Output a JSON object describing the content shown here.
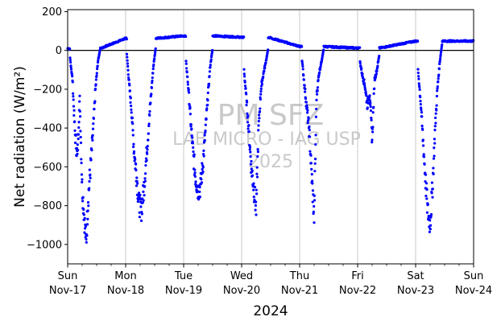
{
  "chart_data": {
    "type": "scatter",
    "ylabel": "Net radiation (W/m²)",
    "xlabel": "2024",
    "ylim": [
      -1100,
      210
    ],
    "xlim": [
      "2024-11-17 00:00",
      "2024-11-24 00:00"
    ],
    "yticks": [
      200,
      0,
      -200,
      -400,
      -600,
      -800,
      -1000
    ],
    "xticks": [
      {
        "day": "Sun",
        "date": "Nov-17"
      },
      {
        "day": "Mon",
        "date": "Nov-18"
      },
      {
        "day": "Tue",
        "date": "Nov-19"
      },
      {
        "day": "Wed",
        "date": "Nov-20"
      },
      {
        "day": "Thu",
        "date": "Nov-21"
      },
      {
        "day": "Fri",
        "date": "Nov-22"
      },
      {
        "day": "Sat",
        "date": "Nov-23"
      },
      {
        "day": "Sun",
        "date": "Nov-24"
      }
    ],
    "minor_ticks_per_day": 4,
    "grid": "vertical at day ticks",
    "zero_line": true,
    "marker_color": "#0000ff",
    "watermark": [
      "PM SFZ",
      "LAB MICRO - IAG USP",
      "2025"
    ],
    "series": [
      {
        "name": "",
        "daily_nighttime_values": [
          {
            "date": "2024-11-17",
            "night_level": 10,
            "daytime": [
              {
                "time": "01:00",
                "value": -40
              },
              {
                "time": "02:00",
                "value": -150
              },
              {
                "time": "03:00",
                "value": -420
              },
              {
                "time": "04:00",
                "value": -550
              },
              {
                "time": "05:00",
                "value": -250
              },
              {
                "time": "06:00",
                "value": -700
              },
              {
                "time": "07:00",
                "value": -880
              },
              {
                "time": "07:40",
                "value": -990
              },
              {
                "time": "08:30",
                "value": -760
              },
              {
                "time": "09:30",
                "value": -600
              },
              {
                "time": "10:30",
                "value": -420
              },
              {
                "time": "11:30",
                "value": -200
              },
              {
                "time": "12:30",
                "value": -60
              },
              {
                "time": "13:30",
                "value": 10
              }
            ]
          },
          {
            "date": "2024-11-18",
            "night_level": 62,
            "daytime": [
              {
                "time": "00:30",
                "value": -20
              },
              {
                "time": "01:30",
                "value": -180
              },
              {
                "time": "02:30",
                "value": -320
              },
              {
                "time": "03:30",
                "value": -520
              },
              {
                "time": "04:30",
                "value": -640
              },
              {
                "time": "05:30",
                "value": -790
              },
              {
                "time": "06:30",
                "value": -820
              },
              {
                "time": "07:30",
                "value": -720
              },
              {
                "time": "08:30",
                "value": -560
              },
              {
                "time": "09:30",
                "value": -400
              },
              {
                "time": "10:30",
                "value": -230
              },
              {
                "time": "11:30",
                "value": -80
              },
              {
                "time": "12:30",
                "value": 20
              }
            ]
          },
          {
            "date": "2024-11-19",
            "night_level": 75,
            "daytime": [
              {
                "time": "01:00",
                "value": -60
              },
              {
                "time": "02:00",
                "value": -200
              },
              {
                "time": "03:00",
                "value": -380
              },
              {
                "time": "04:00",
                "value": -540
              },
              {
                "time": "05:00",
                "value": -660
              },
              {
                "time": "06:00",
                "value": -720
              },
              {
                "time": "07:00",
                "value": -700
              },
              {
                "time": "08:00",
                "value": -580
              },
              {
                "time": "09:00",
                "value": -420
              },
              {
                "time": "10:00",
                "value": -240
              },
              {
                "time": "11:00",
                "value": -80
              },
              {
                "time": "12:00",
                "value": 10
              }
            ]
          },
          {
            "date": "2024-11-20",
            "night_level": 68,
            "daytime": [
              {
                "time": "01:00",
                "value": -100
              },
              {
                "time": "02:00",
                "value": -260
              },
              {
                "time": "03:00",
                "value": -420
              },
              {
                "time": "04:00",
                "value": -600
              },
              {
                "time": "05:00",
                "value": -700
              },
              {
                "time": "06:00",
                "value": -820
              },
              {
                "time": "07:00",
                "value": -400
              },
              {
                "time": "08:00",
                "value": -200
              },
              {
                "time": "09:00",
                "value": -120
              },
              {
                "time": "10:00",
                "value": -60
              },
              {
                "time": "11:00",
                "value": 10
              }
            ]
          },
          {
            "date": "2024-11-21",
            "night_level": 20,
            "daytime": [
              {
                "time": "01:00",
                "value": -50
              },
              {
                "time": "02:00",
                "value": -180
              },
              {
                "time": "03:00",
                "value": -300
              },
              {
                "time": "04:00",
                "value": -420
              },
              {
                "time": "05:00",
                "value": -650
              },
              {
                "time": "06:00",
                "value": -860
              },
              {
                "time": "07:00",
                "value": -240
              },
              {
                "time": "08:00",
                "value": -120
              },
              {
                "time": "09:00",
                "value": -60
              },
              {
                "time": "10:00",
                "value": 10
              }
            ]
          },
          {
            "date": "2024-11-22",
            "night_level": 12,
            "daytime": [
              {
                "time": "01:00",
                "value": -60
              },
              {
                "time": "02:00",
                "value": -130
              },
              {
                "time": "03:00",
                "value": -180
              },
              {
                "time": "04:00",
                "value": -280
              },
              {
                "time": "05:00",
                "value": -220
              },
              {
                "time": "06:00",
                "value": -460
              },
              {
                "time": "07:00",
                "value": -150
              },
              {
                "time": "08:00",
                "value": -100
              },
              {
                "time": "09:00",
                "value": -20
              }
            ]
          },
          {
            "date": "2024-11-23",
            "night_level": 48,
            "daytime": [
              {
                "time": "01:00",
                "value": -100
              },
              {
                "time": "02:00",
                "value": -250
              },
              {
                "time": "03:00",
                "value": -450
              },
              {
                "time": "04:00",
                "value": -650
              },
              {
                "time": "05:00",
                "value": -830
              },
              {
                "time": "06:00",
                "value": -900
              },
              {
                "time": "07:00",
                "value": -700
              },
              {
                "time": "08:00",
                "value": -420
              },
              {
                "time": "09:00",
                "value": -200
              },
              {
                "time": "10:00",
                "value": -60
              },
              {
                "time": "11:00",
                "value": 40
              }
            ]
          }
        ]
      }
    ]
  }
}
